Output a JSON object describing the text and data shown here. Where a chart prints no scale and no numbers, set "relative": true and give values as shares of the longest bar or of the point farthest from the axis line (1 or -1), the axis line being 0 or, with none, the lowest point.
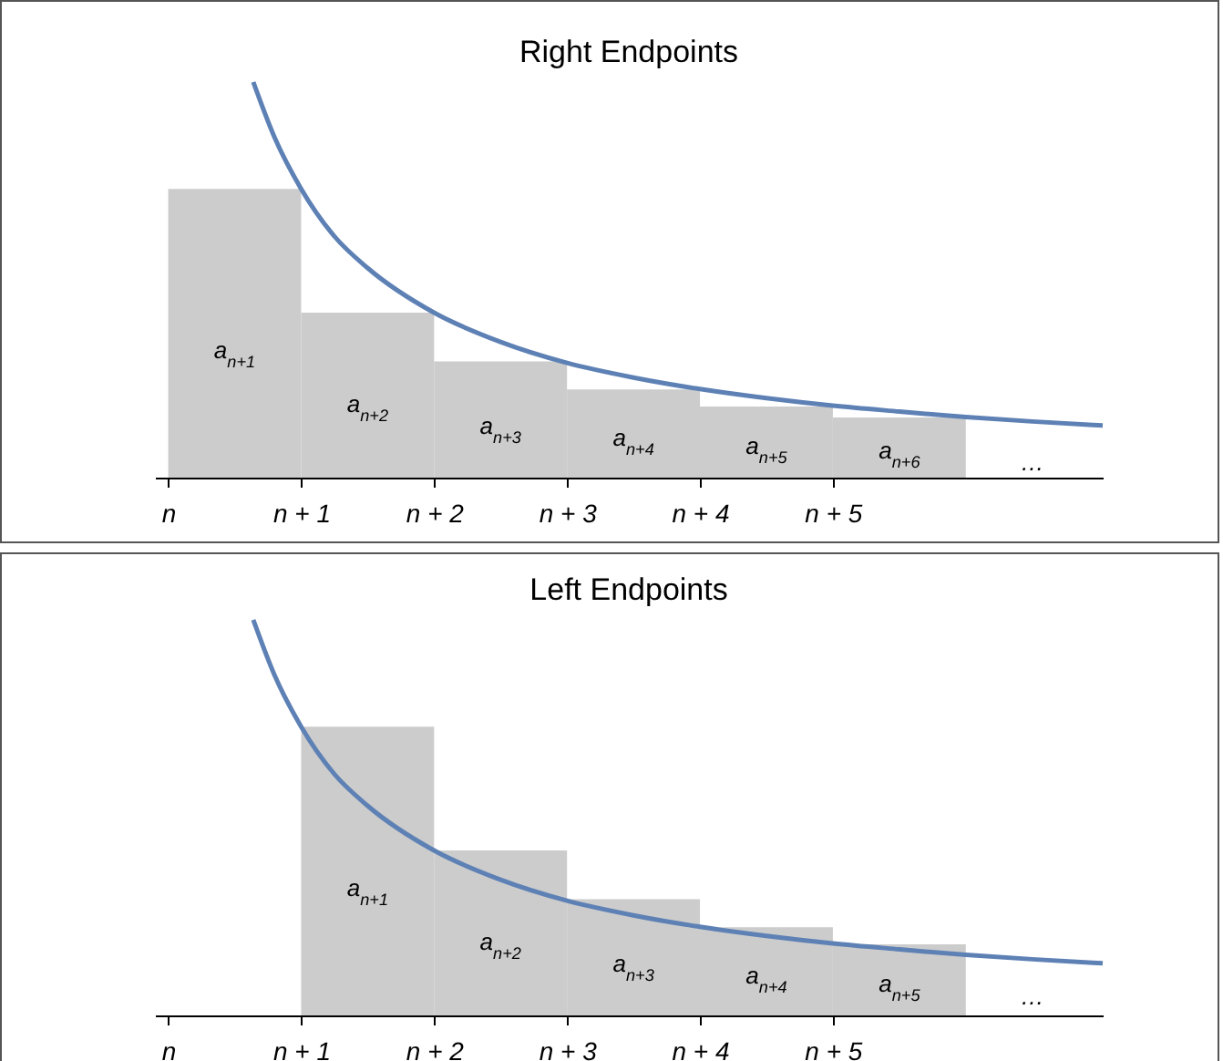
{
  "chart_data": [
    {
      "type": "histogram",
      "title": "Right Endpoints",
      "relative": true,
      "xlim": [
        -0.1,
        7.03
      ],
      "xticks": [
        {
          "value": 0,
          "label": "n"
        },
        {
          "value": 1,
          "label": "n + 1"
        },
        {
          "value": 2,
          "label": "n + 2"
        },
        {
          "value": 3,
          "label": "n + 3"
        },
        {
          "value": 4,
          "label": "n + 4"
        },
        {
          "value": 5,
          "label": "n + 5"
        }
      ],
      "series": [
        {
          "color": "#cccccc",
          "bins": [
            0,
            1,
            2,
            3,
            4,
            5,
            6
          ],
          "values": [
            0.73,
            0.417,
            0.294,
            0.223,
            0.18,
            0.152
          ]
        },
        {
          "type": "line",
          "color": "#5e81b5",
          "x": [
            0.64,
            0.8,
            1,
            1.25,
            1.5,
            2,
            2.5,
            3,
            3.5,
            4,
            4.5,
            5,
            5.5,
            6,
            6.5,
            7.03
          ],
          "values": [
            1,
            0.86,
            0.73,
            0.61,
            0.53,
            0.417,
            0.343,
            0.29,
            0.253,
            0.224,
            0.201,
            0.182,
            0.167,
            0.153,
            0.142,
            0.132
          ]
        }
      ],
      "annotations": [
        "a$_{n+1}$",
        "a$_{n+2}$",
        "a$_{n+3}$",
        "a$_{n+4}$",
        "a$_{n+5}$",
        "a$_{n+6}$",
        "…"
      ]
    },
    {
      "type": "histogram",
      "title": "Left Endpoints",
      "relative": true,
      "xlim": [
        -0.1,
        7.03
      ],
      "xticks": [
        {
          "value": 0,
          "label": "n"
        },
        {
          "value": 1,
          "label": "n + 1"
        },
        {
          "value": 2,
          "label": "n + 2"
        },
        {
          "value": 3,
          "label": "n + 3"
        },
        {
          "value": 4,
          "label": "n + 4"
        },
        {
          "value": 5,
          "label": "n + 5"
        }
      ],
      "series": [
        {
          "color": "#cccccc",
          "bins": [
            1,
            2,
            3,
            4,
            5,
            6
          ],
          "values": [
            0.73,
            0.417,
            0.294,
            0.223,
            0.18
          ]
        },
        {
          "type": "line",
          "color": "#5e81b5",
          "x": [
            0.64,
            0.8,
            1,
            1.25,
            1.5,
            2,
            2.5,
            3,
            3.5,
            4,
            4.5,
            5,
            5.5,
            6,
            6.5,
            7.03
          ],
          "values": [
            1,
            0.86,
            0.73,
            0.61,
            0.53,
            0.417,
            0.343,
            0.29,
            0.253,
            0.224,
            0.201,
            0.182,
            0.167,
            0.153,
            0.142,
            0.132
          ]
        }
      ],
      "annotations": [
        "a$_{n+1}$",
        "a$_{n+2}$",
        "a$_{n+3}$",
        "a$_{n+4}$",
        "a$_{n+5}$",
        "…"
      ]
    }
  ]
}
